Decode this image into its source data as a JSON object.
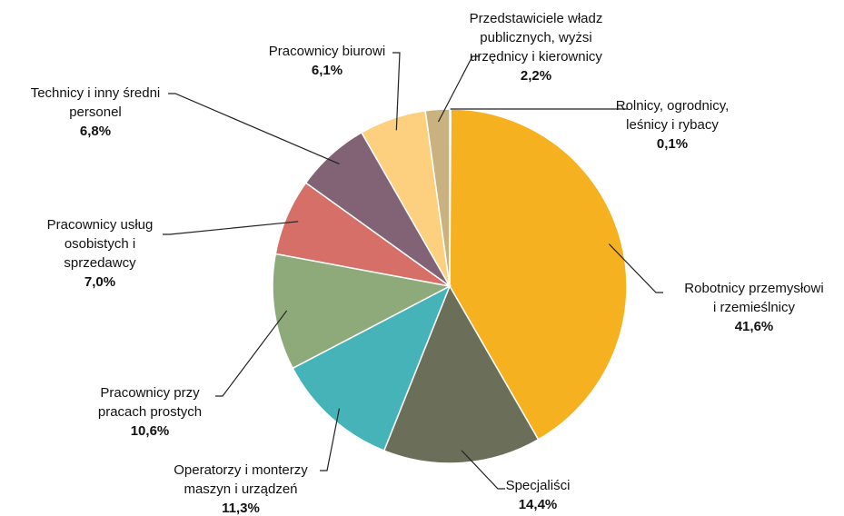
{
  "chart_data": {
    "type": "pie",
    "categories": [
      [
        "Rolnicy, ogrodnicy,",
        "leśnicy i rybacy"
      ],
      [
        "Robotnicy przemysłowi",
        "i rzemieślnicy"
      ],
      [
        "Specjaliści"
      ],
      [
        "Operatorzy i monterzy",
        "maszyn i urządzeń"
      ],
      [
        "Pracownicy przy",
        "pracach prostych"
      ],
      [
        "Pracownicy usług",
        "osobistych i",
        "sprzedawcy"
      ],
      [
        "Technicy i inny średni",
        "personel"
      ],
      [
        "Pracownicy biurowi"
      ],
      [
        "Przedstawiciele władz",
        "publicznych, wyżsi",
        "urzędnicy i kierownicy"
      ]
    ],
    "values": [
      0.1,
      41.6,
      14.4,
      11.3,
      10.6,
      7.0,
      6.8,
      6.1,
      2.2
    ],
    "value_labels": [
      "0,1%",
      "41,6%",
      "14,4%",
      "11,3%",
      "10,6%",
      "7,0%",
      "6,8%",
      "6,1%",
      "2,2%"
    ],
    "colors": [
      "#c8a96e",
      "#f5b120",
      "#6b6e58",
      "#45b3b7",
      "#8faa7a",
      "#d56f67",
      "#826376",
      "#fcd07f",
      "#c9b27f"
    ]
  }
}
